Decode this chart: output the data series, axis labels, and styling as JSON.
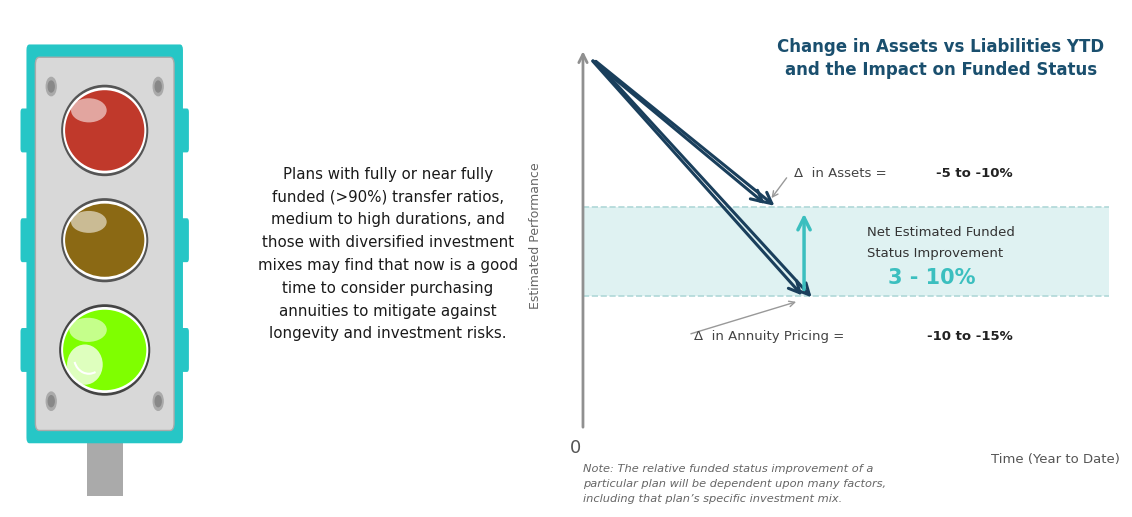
{
  "title": "Change in Assets vs Liabilities YTD\nand the Impact on Funded Status",
  "title_color": "#1a4f6e",
  "title_fontsize": 12,
  "ylabel": "Estimated Performance",
  "xlabel": "Time (Year to Date)",
  "axis_color": "#909090",
  "bg_color": "#ffffff",
  "assets_label_prefix": "Δ  in Assets = ",
  "assets_label_bold": "-5 to -10%",
  "annuity_label_prefix": "Δ  in Annuity Pricing = ",
  "annuity_label_bold": "-10 to -15%",
  "net_label_line1": "Net Estimated Funded",
  "net_label_line2": "Status Improvement",
  "net_value": "3 - 10%",
  "net_color": "#3bbfbf",
  "band_color": "#daf0f0",
  "assets_arrow_color": "#1a3f5c",
  "annuity_arrow_color": "#1a3f5c",
  "net_arrow_color": "#3bbfbf",
  "note_text": "Note: The relative funded status improvement of a\nparticular plan will be dependent upon many factors,\nincluding that plan’s specific investment mix.",
  "text_box_text": "Plans with fully or near fully\nfunded (>90%) transfer ratios,\nmedium to high durations, and\nthose with diversified investment\nmixes may find that now is a good\ntime to consider purchasing\nannuities to mitigate against\nlongevity and investment risks.",
  "text_box_border_color": "#7dc242",
  "traffic_light_border_color": "#26c6c6",
  "traffic_light_body_color": "#d8d8d8",
  "traffic_light_inner_color": "#c0c0c0",
  "red_light_color": "#c0392b",
  "red_light_outer": "#555555",
  "yellow_light_color": "#8B6914",
  "yellow_light_outer": "#555555",
  "green_light_color": "#7fff00",
  "green_light_outer": "#444444",
  "traffic_pole_color": "#aaaaaa"
}
